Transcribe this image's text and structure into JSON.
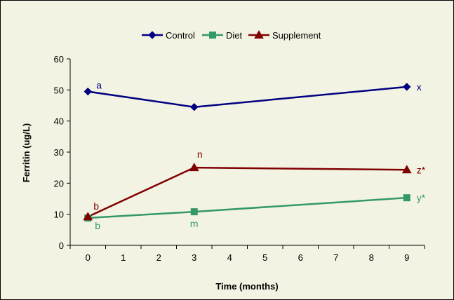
{
  "chart_data": {
    "type": "line",
    "title": "",
    "xlabel": "Time (months)",
    "ylabel": "Ferritin (ug/L)",
    "xlim": [
      0,
      9
    ],
    "ylim": [
      0,
      60
    ],
    "x_ticks": [
      "0",
      "1",
      "2",
      "3",
      "4",
      "5",
      "6",
      "7",
      "8",
      "9"
    ],
    "y_ticks": [
      "0",
      "10",
      "20",
      "30",
      "40",
      "50",
      "60"
    ],
    "legend_position": "top-center",
    "grid": false,
    "series": [
      {
        "name": "Control",
        "color": "#000080",
        "marker": "diamond",
        "x": [
          0,
          3,
          9
        ],
        "values": [
          49.5,
          44.5,
          51
        ]
      },
      {
        "name": "Diet",
        "color": "#339966",
        "marker": "square",
        "x": [
          0,
          3,
          9
        ],
        "values": [
          8.8,
          10.8,
          15.3
        ]
      },
      {
        "name": "Supplement",
        "color": "#800000",
        "marker": "triangle",
        "x": [
          0,
          3,
          9
        ],
        "values": [
          9.2,
          25,
          24.3
        ]
      }
    ],
    "annotations": [
      {
        "text": "a",
        "series": 0,
        "point": 0
      },
      {
        "text": "x",
        "series": 0,
        "point": 2
      },
      {
        "text": "b",
        "series": 1,
        "point": 0
      },
      {
        "text": "m",
        "series": 1,
        "point": 1
      },
      {
        "text": "y*",
        "series": 1,
        "point": 2
      },
      {
        "text": "b",
        "series": 2,
        "point": 0
      },
      {
        "text": "n",
        "series": 2,
        "point": 1
      },
      {
        "text": "z*",
        "series": 2,
        "point": 2
      }
    ]
  }
}
